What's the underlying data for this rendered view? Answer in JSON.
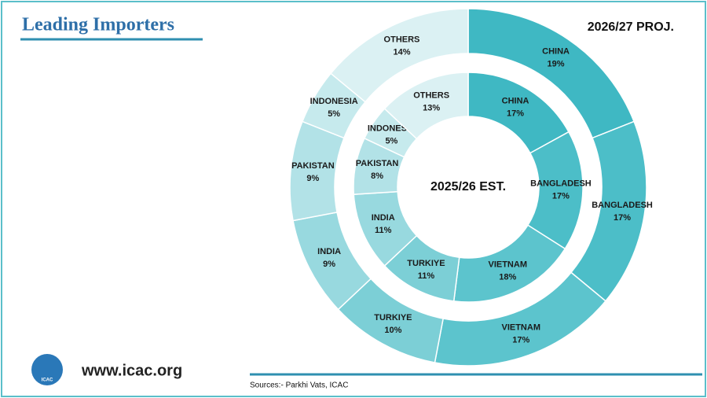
{
  "chart_data": {
    "type": "donut",
    "title": "Leading Importers",
    "rings": [
      {
        "name": "2025/26 EST.",
        "categories": [
          "CHINA",
          "BANGLADESH",
          "VIETNAM",
          "TURKIYE",
          "INDIA",
          "PAKISTAN",
          "INDONESIA",
          "OTHERS"
        ],
        "values": [
          17,
          17,
          18,
          11,
          11,
          8,
          5,
          13
        ],
        "value_labels": [
          "17%",
          "17%",
          "18%",
          "11%",
          "11%",
          "8%",
          "5%",
          "13%"
        ]
      },
      {
        "name": "2026/27 PROJ.",
        "categories": [
          "CHINA",
          "BANGLADESH",
          "VIETNAM",
          "TURKIYE",
          "INDIA",
          "PAKISTAN",
          "INDONESIA",
          "OTHERS"
        ],
        "values": [
          19,
          17,
          17,
          10,
          9,
          9,
          5,
          14
        ],
        "value_labels": [
          "19%",
          "17%",
          "17%",
          "10%",
          "9%",
          "9%",
          "5%",
          "14%"
        ]
      }
    ],
    "colors": [
      "#3fb8c3",
      "#4cbec8",
      "#5cc4cd",
      "#7ccfd6",
      "#98d9df",
      "#b2e2e7",
      "#c6eaed",
      "#dbf1f3"
    ]
  },
  "footer": {
    "website": "www.icac.org",
    "source": "Sources:- Parkhi Vats, ICAC",
    "logo": "ICAC"
  }
}
